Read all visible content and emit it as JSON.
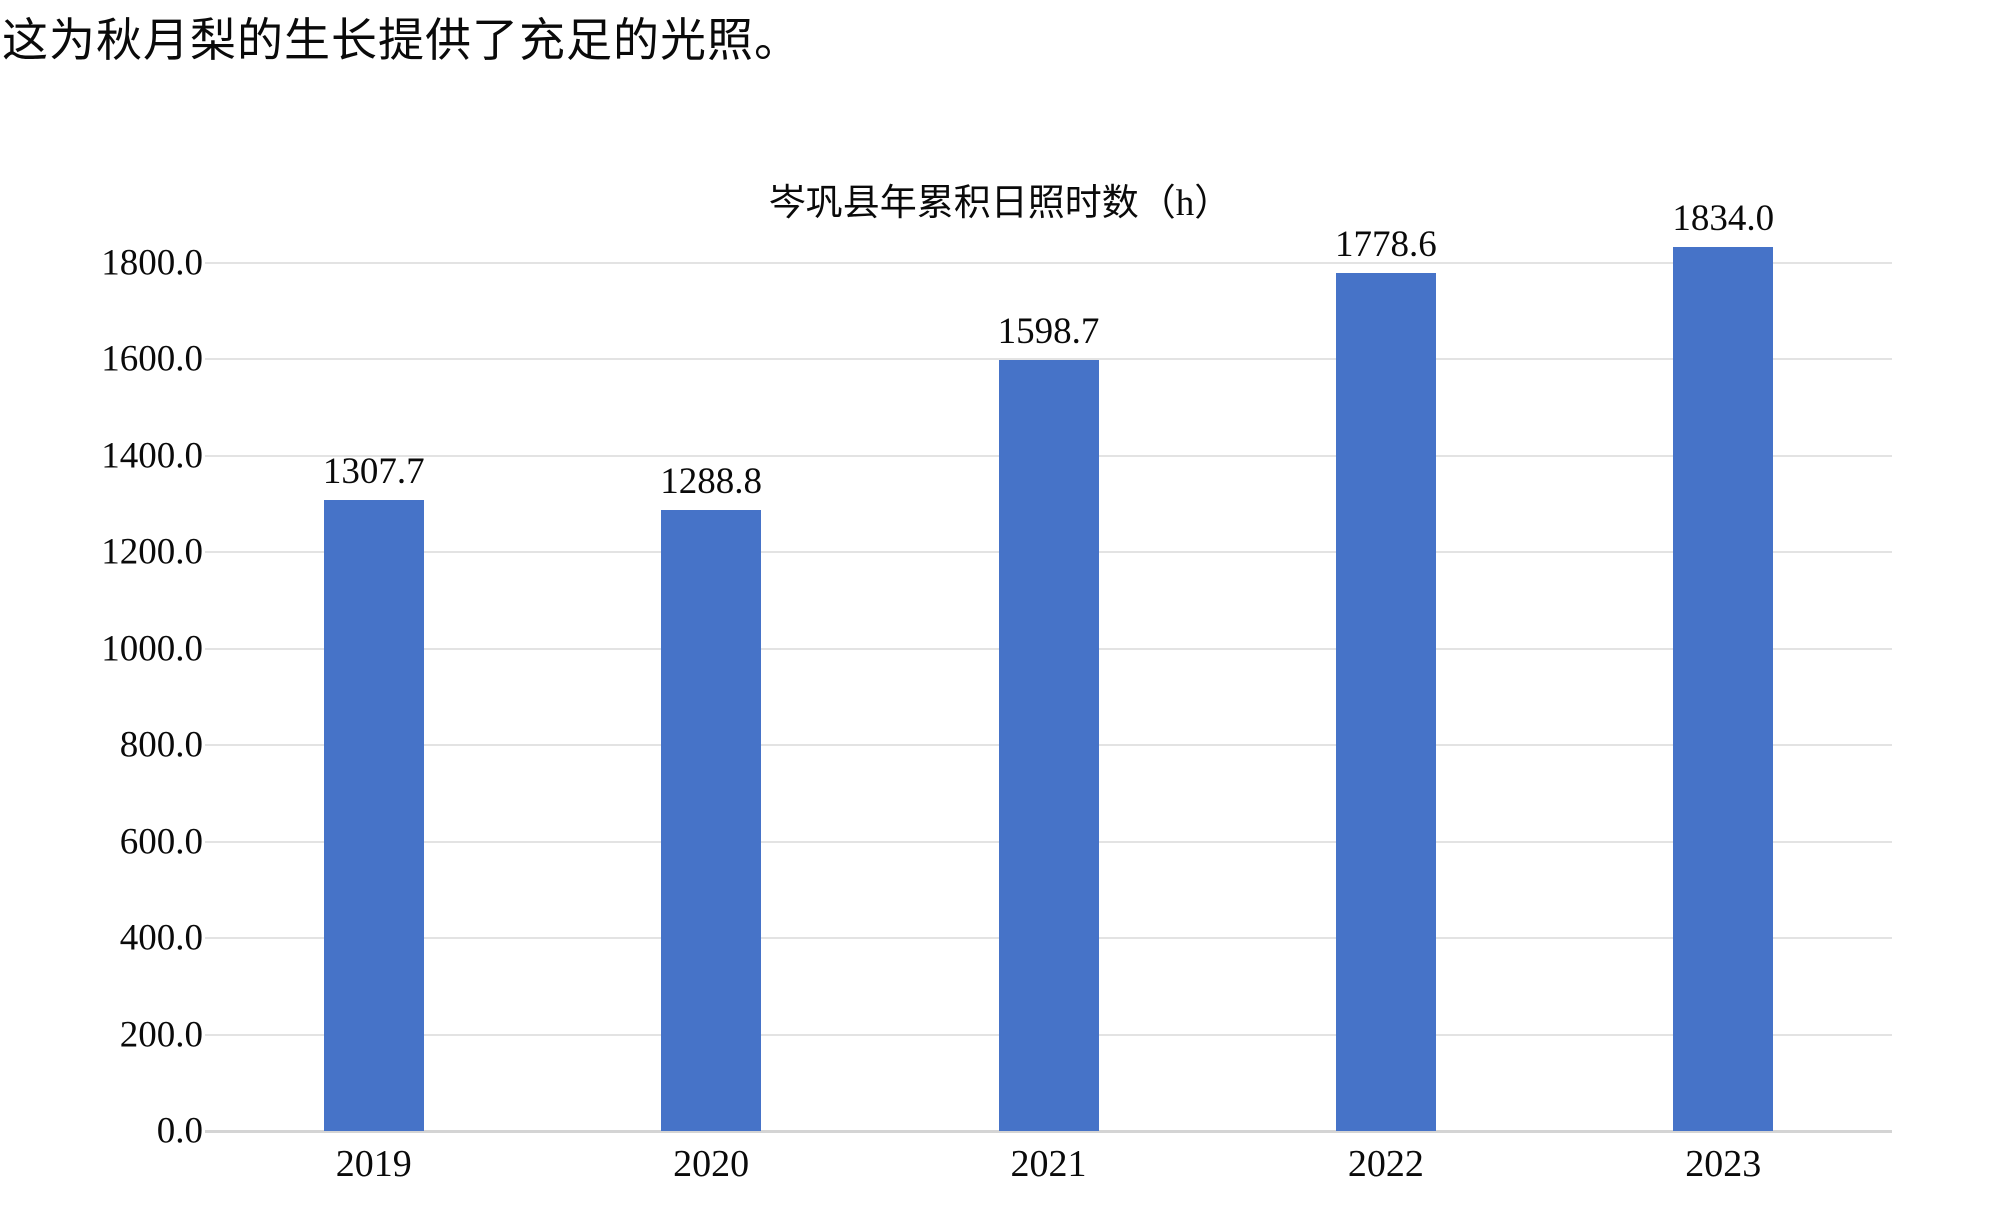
{
  "page": {
    "top_text": "这为秋月梨的生长提供了充足的光照。"
  },
  "chart_data": {
    "type": "bar",
    "title": "岑巩县年累积日照时数（h）",
    "categories": [
      "2019",
      "2020",
      "2021",
      "2022",
      "2023"
    ],
    "values": [
      1307.7,
      1288.8,
      1598.7,
      1778.6,
      1834.0
    ],
    "data_labels": [
      "1307.7",
      "1288.8",
      "1598.7",
      "1778.6",
      "1834.0"
    ],
    "xlabel": "",
    "ylabel": "",
    "ylim": [
      0,
      1800
    ],
    "ytick_step": 200,
    "ytick_labels": [
      "0.0",
      "200.0",
      "400.0",
      "600.0",
      "800.0",
      "1000.0",
      "1200.0",
      "1400.0",
      "1600.0",
      "1800.0"
    ],
    "grid": true,
    "legend": "none",
    "bar_color": "#4673C8",
    "gridline_color": "#E3E3E3",
    "axis_line_color": "#D4D4D4",
    "text_color": "#0a0a0a"
  }
}
